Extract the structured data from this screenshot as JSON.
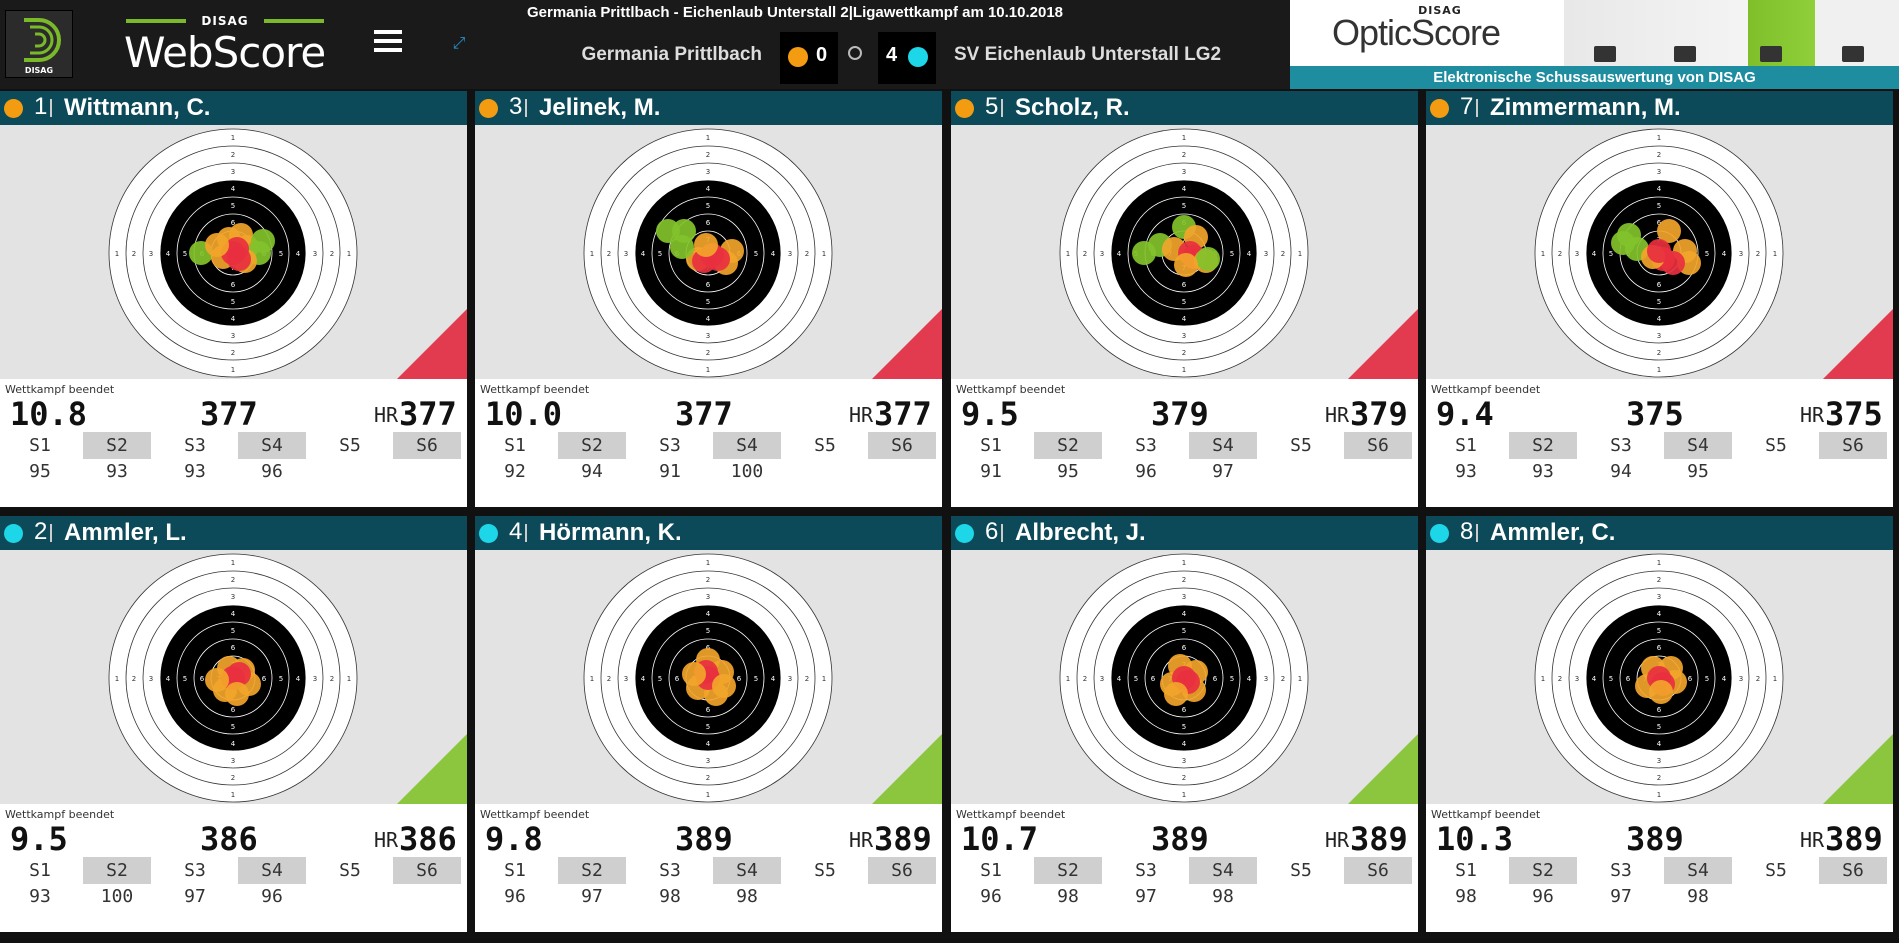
{
  "header": {
    "logo_text": "DISAG",
    "brand_top": "DISAG",
    "brand_name": "WebScore",
    "match_title": "Germania Prittlbach - Eichenlaub Unterstall 2|Ligawettkampf am 10.10.2018",
    "team_left": "Germania Prittlbach",
    "team_right": "SV Eichenlaub Unterstall LG2",
    "score_left": "0",
    "score_right": "4",
    "color_left": "#f39c12",
    "color_right": "#1dd6e8"
  },
  "ad": {
    "brand_top": "DISAG",
    "brand_name": "OpticScore",
    "tagline": "Elektronische Schussauswertung von DISAG"
  },
  "colors": {
    "panel_header": "#0d4a59",
    "corner_red": "#e23a4e",
    "corner_green": "#8cc63f",
    "shot_red": "#e8303f",
    "shot_orange": "#f2a52a",
    "shot_green": "#82c22b"
  },
  "panels": [
    {
      "pos": "1",
      "name": "Wittmann, C.",
      "team": "left",
      "status": "Wettkampf beendet",
      "last_shot": "10.8",
      "total": "377",
      "hr_label": "HR",
      "hr": "377",
      "series_labels": [
        "S1",
        "S2",
        "S3",
        "S4",
        "S5",
        "S6"
      ],
      "series_values": [
        "95",
        "93",
        "93",
        "96",
        "",
        ""
      ],
      "corner": "red"
    },
    {
      "pos": "3",
      "name": "Jelinek, M.",
      "team": "left",
      "status": "Wettkampf beendet",
      "last_shot": "10.0",
      "total": "377",
      "hr_label": "HR",
      "hr": "377",
      "series_labels": [
        "S1",
        "S2",
        "S3",
        "S4",
        "S5",
        "S6"
      ],
      "series_values": [
        "92",
        "94",
        "91",
        "100",
        "",
        ""
      ],
      "corner": "red"
    },
    {
      "pos": "5",
      "name": "Scholz, R.",
      "team": "left",
      "status": "Wettkampf beendet",
      "last_shot": "9.5",
      "total": "379",
      "hr_label": "HR",
      "hr": "379",
      "series_labels": [
        "S1",
        "S2",
        "S3",
        "S4",
        "S5",
        "S6"
      ],
      "series_values": [
        "91",
        "95",
        "96",
        "97",
        "",
        ""
      ],
      "corner": "red"
    },
    {
      "pos": "7",
      "name": "Zimmermann, M.",
      "team": "left",
      "status": "Wettkampf beendet",
      "last_shot": "9.4",
      "total": "375",
      "hr_label": "HR",
      "hr": "375",
      "series_labels": [
        "S1",
        "S2",
        "S3",
        "S4",
        "S5",
        "S6"
      ],
      "series_values": [
        "93",
        "93",
        "94",
        "95",
        "",
        ""
      ],
      "corner": "red"
    },
    {
      "pos": "2",
      "name": "Ammler, L.",
      "team": "right",
      "status": "Wettkampf beendet",
      "last_shot": "9.5",
      "total": "386",
      "hr_label": "HR",
      "hr": "386",
      "series_labels": [
        "S1",
        "S2",
        "S3",
        "S4",
        "S5",
        "S6"
      ],
      "series_values": [
        "93",
        "100",
        "97",
        "96",
        "",
        ""
      ],
      "corner": "green"
    },
    {
      "pos": "4",
      "name": "Hörmann, K.",
      "team": "right",
      "status": "Wettkampf beendet",
      "last_shot": "9.8",
      "total": "389",
      "hr_label": "HR",
      "hr": "389",
      "series_labels": [
        "S1",
        "S2",
        "S3",
        "S4",
        "S5",
        "S6"
      ],
      "series_values": [
        "96",
        "97",
        "98",
        "98",
        "",
        ""
      ],
      "corner": "green"
    },
    {
      "pos": "6",
      "name": "Albrecht, J.",
      "team": "right",
      "status": "Wettkampf beendet",
      "last_shot": "10.7",
      "total": "389",
      "hr_label": "HR",
      "hr": "389",
      "series_labels": [
        "S1",
        "S2",
        "S3",
        "S4",
        "S5",
        "S6"
      ],
      "series_values": [
        "96",
        "98",
        "97",
        "98",
        "",
        ""
      ],
      "corner": "green"
    },
    {
      "pos": "8",
      "name": "Ammler, C.",
      "team": "right",
      "status": "Wettkampf beendet",
      "last_shot": "10.3",
      "total": "389",
      "hr_label": "HR",
      "hr": "389",
      "series_labels": [
        "S1",
        "S2",
        "S3",
        "S4",
        "S5",
        "S6"
      ],
      "series_values": [
        "98",
        "96",
        "97",
        "98",
        "",
        ""
      ],
      "corner": "green"
    }
  ],
  "ring_numbers": [
    "1",
    "2",
    "3",
    "4",
    "5",
    "6",
    "7",
    "8"
  ]
}
